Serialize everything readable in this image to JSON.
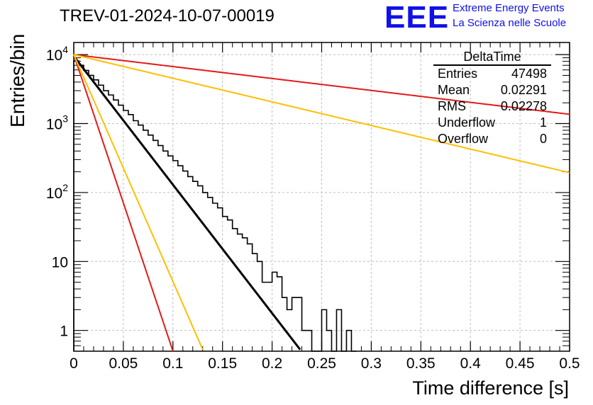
{
  "title": "TREV-01-2024-10-07-00019",
  "logo": {
    "mark": "EEE",
    "line1": "Extreme Energy Events",
    "line2": "La Scienza nelle Scuole",
    "color": "#1010e8"
  },
  "stats": {
    "name": "DeltaTime",
    "rows": [
      {
        "label": "Entries",
        "value": "47498"
      },
      {
        "label": "Mean",
        "value": "0.02291"
      },
      {
        "label": "RMS",
        "value": "0.02278"
      },
      {
        "label": "Underflow",
        "value": "1"
      },
      {
        "label": "Overflow",
        "value": "0"
      }
    ]
  },
  "chart_data": {
    "type": "line",
    "xlabel": "Time difference [s]",
    "ylabel": "Entries/bin",
    "xlim": [
      0,
      0.5
    ],
    "ylim": [
      0.5,
      15000
    ],
    "ylog": true,
    "grid": true,
    "x_ticks": [
      "0",
      "0.05",
      "0.1",
      "0.15",
      "0.2",
      "0.25",
      "0.3",
      "0.35",
      "0.4",
      "0.45",
      "0.5"
    ],
    "y_ticks": [
      {
        "value": 1,
        "label": "1"
      },
      {
        "value": 10,
        "label": "10"
      },
      {
        "value": 100,
        "label": "10^2"
      },
      {
        "value": 1000,
        "label": "10^3"
      },
      {
        "value": 10000,
        "label": "10^4"
      }
    ],
    "histogram": {
      "bin_width": 0.005,
      "counts": [
        8100,
        7000,
        5900,
        5000,
        4300,
        3600,
        3000,
        2600,
        2200,
        1850,
        1550,
        1350,
        1100,
        950,
        800,
        680,
        570,
        480,
        400,
        340,
        290,
        245,
        205,
        170,
        145,
        125,
        100,
        85,
        70,
        60,
        45,
        40,
        30,
        25,
        22,
        18,
        13,
        10,
        5,
        5,
        7,
        6,
        3,
        2,
        3,
        3,
        1,
        1,
        0,
        0,
        2,
        1,
        0,
        2,
        0,
        1,
        0
      ],
      "color": "#000000"
    },
    "series": [
      {
        "type": "exp",
        "a": 9500,
        "tau": 0.0233,
        "x_end": 0.2283,
        "color": "#000000",
        "width": 3
      },
      {
        "type": "exp",
        "a": 10000,
        "tau": 0.0101,
        "x_end": 0.1,
        "color": "#e41a1a",
        "width": 2
      },
      {
        "type": "exp",
        "a": 10000,
        "tau": 0.0132,
        "x_end": 0.13,
        "color": "#ffbf00",
        "width": 2
      },
      {
        "type": "exp",
        "a": 10000,
        "tau": 0.251,
        "x_end": 0.5,
        "color": "#e41a1a",
        "width": 2
      },
      {
        "type": "exp",
        "a": 10000,
        "tau": 0.1268,
        "x_end": 0.5,
        "color": "#ffbf00",
        "width": 2
      }
    ]
  }
}
